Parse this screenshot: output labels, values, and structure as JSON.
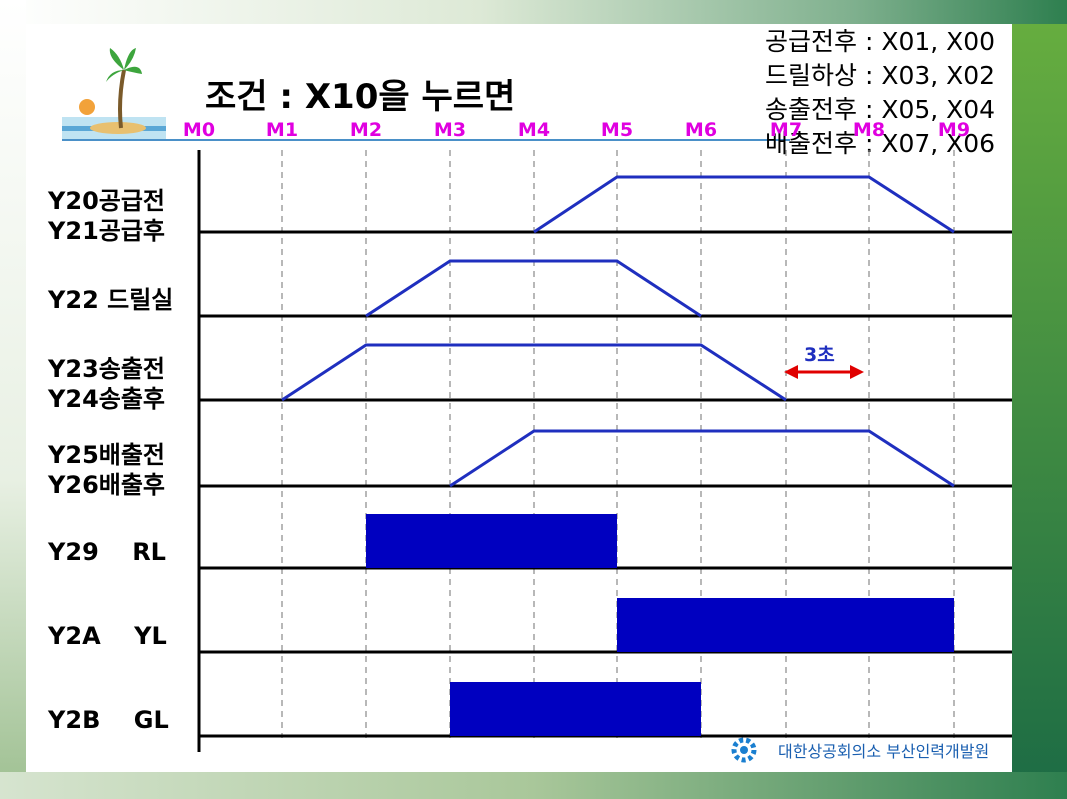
{
  "title": "조건 : X10을 누르면",
  "legend_lines": [
    "공급전후 : X01, X00",
    "드릴하상 : X03, X02",
    "송출전후 : X05, X04",
    "배출전후 : X07, X06"
  ],
  "markers": [
    "M0",
    "M1",
    "M2",
    "M3",
    "M4",
    "M5",
    "M6",
    "M7",
    "M8",
    "M9"
  ],
  "rows": [
    {
      "lines": [
        "Y20공급전",
        "Y21공급후"
      ]
    },
    {
      "lines": [
        "Y22 드릴실"
      ]
    },
    {
      "lines": [
        "Y23송출전",
        "Y24송출후"
      ]
    },
    {
      "lines": [
        "Y25배출전",
        "Y26배출후"
      ]
    },
    {
      "lines": [
        "Y29    RL"
      ]
    },
    {
      "lines": [
        "Y2A    YL"
      ]
    },
    {
      "lines": [
        "Y2B    GL"
      ]
    }
  ],
  "duration_label": "3초",
  "footer": "대한상공회의소 부산인력개발원",
  "colors": {
    "signal": "#1f2fbf",
    "block": "#0000c0",
    "marker": "#e000e0",
    "arrow": "#e00000",
    "accent_green": "#66ad3f"
  }
}
